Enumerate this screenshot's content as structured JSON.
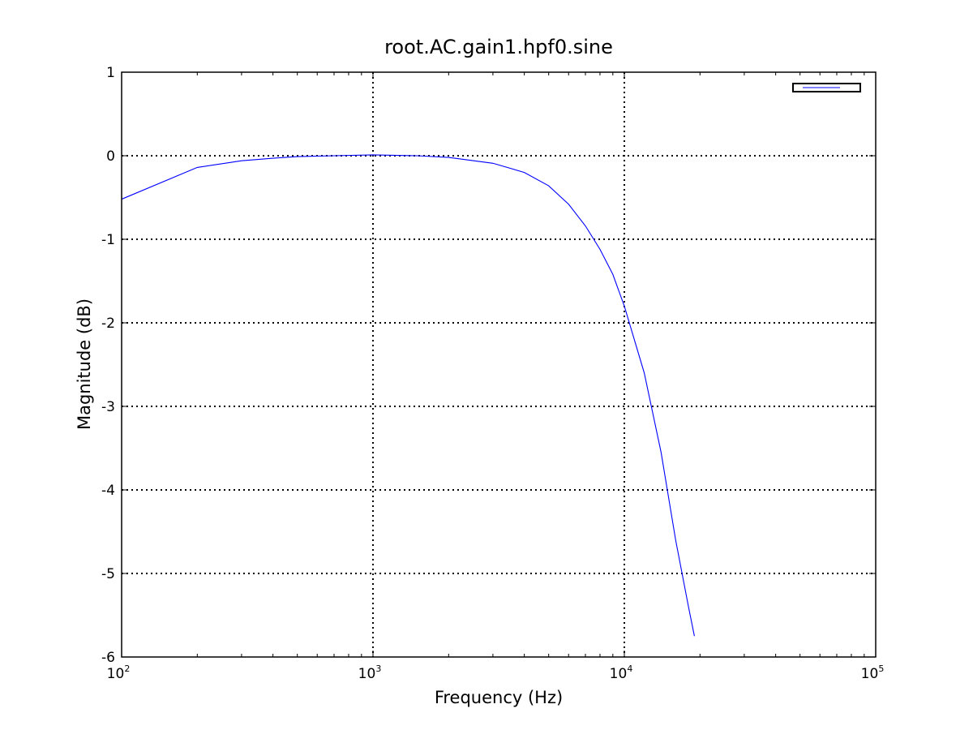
{
  "chart_data": {
    "type": "line",
    "title": "root.AC.gain1.hpf0.sine",
    "xlabel": "Frequency (Hz)",
    "ylabel": "Magnitude (dB)",
    "xscale": "log",
    "xlim": [
      100,
      100000
    ],
    "ylim": [
      -6,
      1
    ],
    "x_ticks": [
      {
        "value": 100,
        "base": "10",
        "exp": "2"
      },
      {
        "value": 1000,
        "base": "10",
        "exp": "3"
      },
      {
        "value": 10000,
        "base": "10",
        "exp": "4"
      },
      {
        "value": 100000,
        "base": "10",
        "exp": "5"
      }
    ],
    "y_ticks": [
      {
        "value": 1,
        "label": "1"
      },
      {
        "value": 0,
        "label": "0"
      },
      {
        "value": -1,
        "label": "-1"
      },
      {
        "value": -2,
        "label": "-2"
      },
      {
        "value": -3,
        "label": "-3"
      },
      {
        "value": -4,
        "label": "-4"
      },
      {
        "value": -5,
        "label": "-5"
      },
      {
        "value": -6,
        "label": "-6"
      }
    ],
    "grid": true,
    "legend": {
      "position": "top-right",
      "entries": [
        ""
      ]
    },
    "series": [
      {
        "color": "#0000ff",
        "x": [
          100,
          200,
          300,
          400,
          500,
          700,
          1000,
          1500,
          2000,
          3000,
          4000,
          5000,
          6000,
          7000,
          8000,
          9000,
          10000,
          12000,
          14000,
          16000,
          18000,
          19000
        ],
        "y": [
          -0.52,
          -0.14,
          -0.06,
          -0.03,
          -0.01,
          0.0,
          0.01,
          0.0,
          -0.02,
          -0.09,
          -0.2,
          -0.36,
          -0.58,
          -0.84,
          -1.12,
          -1.42,
          -1.8,
          -2.6,
          -3.55,
          -4.6,
          -5.4,
          -5.75
        ]
      }
    ]
  }
}
